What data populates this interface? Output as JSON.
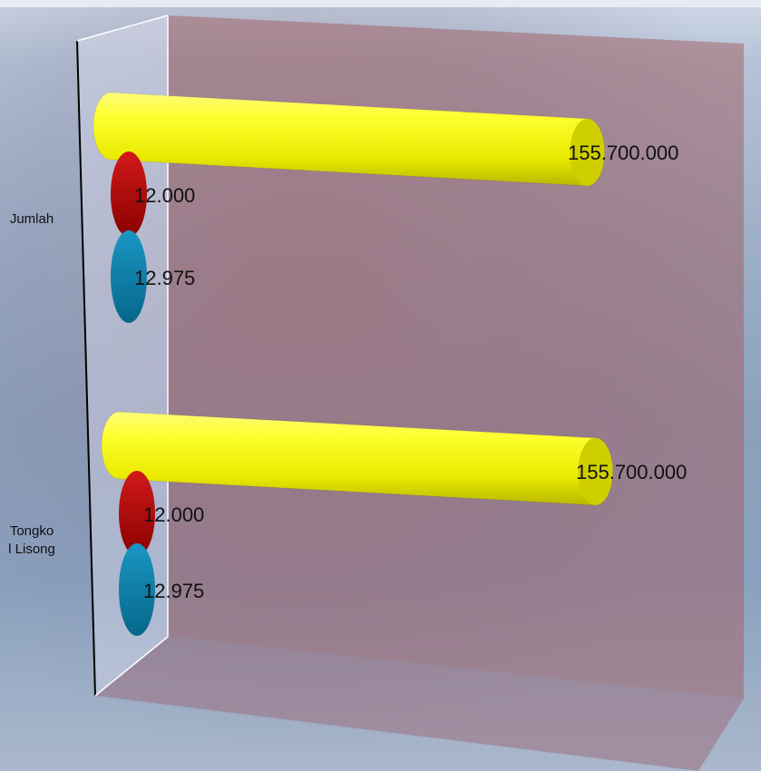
{
  "chart_data": {
    "type": "bar",
    "orientation": "horizontal",
    "style": "3d-cylinder",
    "categories": [
      "Jumlah",
      "Tongkol Lisong"
    ],
    "category_labels_display": [
      "Jumlah",
      "Tongko\nl Lisong"
    ],
    "series": [
      {
        "color": "#f5f500",
        "values": [
          155700000,
          155700000
        ],
        "labels": [
          "155.700.000",
          "155.700.000"
        ]
      },
      {
        "color": "#b40000",
        "values": [
          12000,
          12000
        ],
        "labels": [
          "12.000",
          "12.000"
        ]
      },
      {
        "color": "#0a7fa8",
        "values": [
          12975,
          12975
        ],
        "labels": [
          "12.975",
          "12.975"
        ]
      }
    ],
    "title": "",
    "xlabel": "",
    "ylabel": "",
    "xlim": [
      0,
      160000000
    ],
    "grid": false,
    "legend": "none"
  }
}
